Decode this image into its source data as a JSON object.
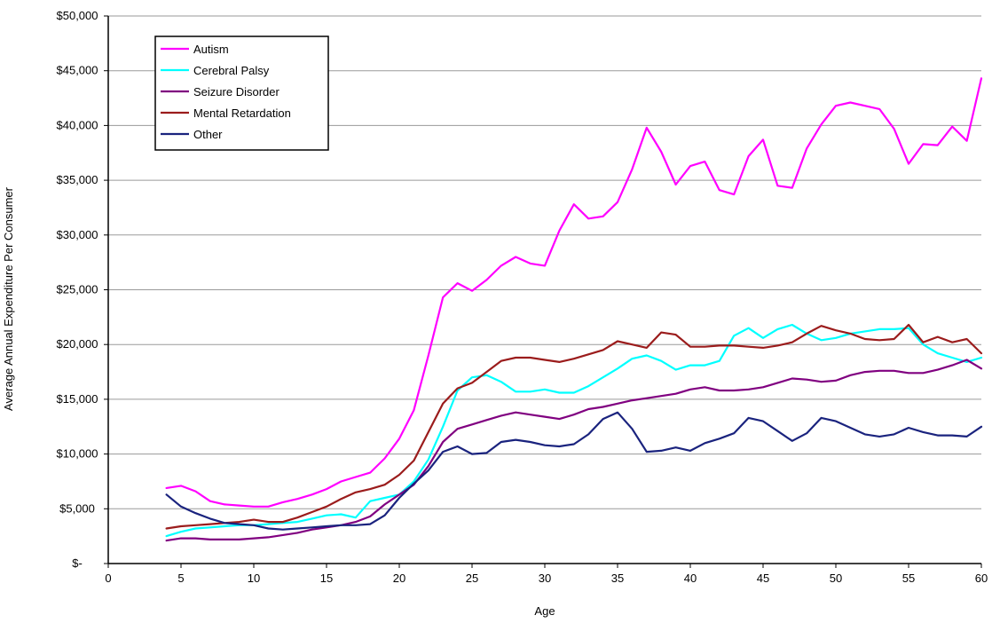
{
  "chart_data": {
    "type": "line",
    "title": "",
    "xlabel": "Age",
    "ylabel": "Average Annual Expenditure Per Consumer",
    "xlim": [
      0,
      60
    ],
    "ylim": [
      0,
      50000
    ],
    "x_ticks": [
      0,
      5,
      10,
      15,
      20,
      25,
      30,
      35,
      40,
      45,
      50,
      55,
      60
    ],
    "y_ticks": [
      0,
      5000,
      10000,
      15000,
      20000,
      25000,
      30000,
      35000,
      40000,
      45000,
      50000
    ],
    "y_tick_labels": [
      "$-",
      "$5,000",
      "$10,000",
      "$15,000",
      "$20,000",
      "$25,000",
      "$30,000",
      "$35,000",
      "$40,000",
      "$45,000",
      "$50,000"
    ],
    "grid": "horizontal",
    "legend_position": "top-left",
    "x": [
      4,
      5,
      6,
      7,
      8,
      9,
      10,
      11,
      12,
      13,
      14,
      15,
      16,
      17,
      18,
      19,
      20,
      21,
      22,
      23,
      24,
      25,
      26,
      27,
      28,
      29,
      30,
      31,
      32,
      33,
      34,
      35,
      36,
      37,
      38,
      39,
      40,
      41,
      42,
      43,
      44,
      45,
      46,
      47,
      48,
      49,
      50,
      51,
      52,
      53,
      54,
      55,
      56,
      57,
      58,
      59,
      60
    ],
    "series": [
      {
        "name": "Autism",
        "color": "#ff00ff",
        "values": [
          6900,
          7100,
          6600,
          5700,
          5400,
          5300,
          5200,
          5200,
          5600,
          5900,
          6300,
          6800,
          7500,
          7900,
          8300,
          9600,
          11400,
          14000,
          19000,
          24300,
          25600,
          24900,
          25900,
          27200,
          28000,
          27400,
          27200,
          30400,
          32800,
          31500,
          31700,
          33000,
          36000,
          39800,
          37600,
          34600,
          36300,
          36700,
          34100,
          33700,
          37200,
          38700,
          34500,
          34300,
          37900,
          40100,
          41800,
          42100,
          41800,
          41500,
          39700,
          36500,
          38300,
          38200,
          39900,
          38600,
          44300
        ]
      },
      {
        "name": "Cerebral Palsy",
        "color": "#00ffff",
        "values": [
          2500,
          2900,
          3200,
          3300,
          3400,
          3500,
          3500,
          3600,
          3700,
          3800,
          4100,
          4400,
          4500,
          4200,
          5700,
          6000,
          6300,
          7500,
          9500,
          12500,
          15800,
          17000,
          17200,
          16600,
          15700,
          15700,
          15900,
          15600,
          15600,
          16200,
          17000,
          17800,
          18700,
          19000,
          18500,
          17700,
          18100,
          18100,
          18500,
          20800,
          21500,
          20600,
          21400,
          21800,
          21000,
          20400,
          20600,
          21000,
          21200,
          21400,
          21400,
          21500,
          20000,
          19200,
          18800,
          18400,
          18800
        ]
      },
      {
        "name": "Seizure Disorder",
        "color": "#800080",
        "values": [
          2100,
          2300,
          2300,
          2200,
          2200,
          2200,
          2300,
          2400,
          2600,
          2800,
          3100,
          3300,
          3500,
          3800,
          4300,
          5400,
          6300,
          7200,
          8900,
          11100,
          12300,
          12700,
          13100,
          13500,
          13800,
          13600,
          13400,
          13200,
          13600,
          14100,
          14300,
          14600,
          14900,
          15100,
          15300,
          15500,
          15900,
          16100,
          15800,
          15800,
          15900,
          16100,
          16500,
          16900,
          16800,
          16600,
          16700,
          17200,
          17500,
          17600,
          17600,
          17400,
          17400,
          17700,
          18100,
          18600,
          17800
        ]
      },
      {
        "name": "Mental Retardation",
        "color": "#9b1c1c",
        "values": [
          3200,
          3400,
          3500,
          3600,
          3700,
          3800,
          4000,
          3800,
          3800,
          4200,
          4700,
          5200,
          5900,
          6500,
          6800,
          7200,
          8100,
          9400,
          12000,
          14600,
          16000,
          16500,
          17500,
          18500,
          18800,
          18800,
          18600,
          18400,
          18700,
          19100,
          19500,
          20300,
          20000,
          19700,
          21100,
          20900,
          19800,
          19800,
          19900,
          19900,
          19800,
          19700,
          19900,
          20200,
          21000,
          21700,
          21300,
          21000,
          20500,
          20400,
          20500,
          21800,
          20200,
          20700,
          20200,
          20500,
          19200
        ]
      },
      {
        "name": "Other",
        "color": "#1a237e",
        "values": [
          6300,
          5200,
          4600,
          4100,
          3700,
          3600,
          3500,
          3200,
          3100,
          3200,
          3300,
          3400,
          3500,
          3500,
          3600,
          4400,
          6000,
          7300,
          8500,
          10200,
          10700,
          10000,
          10100,
          11100,
          11300,
          11100,
          10800,
          10700,
          10900,
          11800,
          13200,
          13800,
          12300,
          10200,
          10300,
          10600,
          10300,
          11000,
          11400,
          11900,
          13300,
          13000,
          12100,
          11200,
          11900,
          13300,
          13000,
          12400,
          11800,
          11600,
          11800,
          12400,
          12000,
          11700,
          11700,
          11600,
          12500
        ]
      }
    ]
  }
}
